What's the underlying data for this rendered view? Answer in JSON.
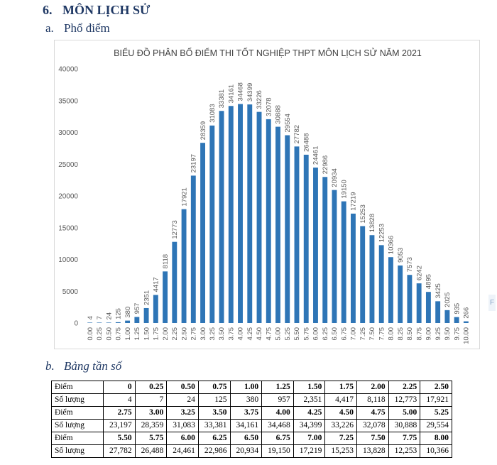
{
  "section": {
    "number": "6.",
    "title": "MÔN LỊCH SỬ"
  },
  "sub_a": {
    "number": "a.",
    "title": "Phổ điểm"
  },
  "sub_b": {
    "number": "b.",
    "title": "Bảng tần số"
  },
  "side_label": "F",
  "colors": {
    "bar": "#2e75b6",
    "heading": "#1f3864"
  },
  "chart_data": {
    "type": "bar",
    "title": "BIỂU ĐỒ PHÂN BỐ ĐIỂM THI TỐT NGHIỆP THPT MÔN LỊCH SỬ NĂM 2021",
    "xlabel": "",
    "ylabel": "",
    "ylim": [
      0,
      40000
    ],
    "yticks": [
      "40000",
      "35000",
      "30000",
      "25000",
      "20000",
      "15000",
      "10000",
      "5000",
      "0"
    ],
    "categories": [
      "0.00",
      "0.25",
      "0.50",
      "0.75",
      "1.00",
      "1.25",
      "1.50",
      "1.75",
      "2.00",
      "2.25",
      "2.50",
      "2.75",
      "3.00",
      "3.25",
      "3.50",
      "3.75",
      "4.00",
      "4.25",
      "4.50",
      "4.75",
      "5.00",
      "5.25",
      "5.50",
      "5.75",
      "6.00",
      "6.25",
      "6.50",
      "6.75",
      "7.00",
      "7.25",
      "7.50",
      "7.75",
      "8.00",
      "8.25",
      "8.50",
      "8.75",
      "9.00",
      "9.25",
      "9.50",
      "9.75",
      "10.00"
    ],
    "values": [
      4,
      7,
      24,
      125,
      380,
      957,
      2351,
      4417,
      8118,
      12773,
      17921,
      23197,
      28359,
      31083,
      33381,
      34161,
      34468,
      34399,
      33226,
      32078,
      30888,
      29554,
      27782,
      26488,
      24461,
      22986,
      20934,
      19150,
      17219,
      15253,
      13828,
      12253,
      10366,
      9053,
      7573,
      6242,
      4895,
      3425,
      2025,
      935,
      266
    ],
    "data_labels": [
      "4",
      "7",
      "24",
      "125",
      "380",
      "957",
      "2351",
      "4417",
      "8118",
      "12773",
      "17921",
      "23197",
      "28359",
      "31083",
      "33381",
      "34161",
      "34468",
      "34399",
      "33226",
      "32078",
      "30888",
      "29554",
      "27782",
      "26488",
      "24461",
      "22986",
      "20934",
      "19150",
      "17219",
      "15253",
      "13828",
      "12253",
      "10366",
      "9053",
      "7573",
      "6242",
      "4895",
      "3425",
      "2025",
      "935",
      "266"
    ]
  },
  "table": {
    "score_label": "Điểm",
    "count_label": "Số lượng",
    "blocks": [
      {
        "scores": [
          "0",
          "0.25",
          "0.50",
          "0.75",
          "1.00",
          "1.25",
          "1.50",
          "1.75",
          "2.00",
          "2.25",
          "2.50"
        ],
        "counts": [
          "4",
          "7",
          "24",
          "125",
          "380",
          "957",
          "2,351",
          "4,417",
          "8,118",
          "12,773",
          "17,921"
        ]
      },
      {
        "scores": [
          "2.75",
          "3.00",
          "3.25",
          "3.50",
          "3.75",
          "4.00",
          "4.25",
          "4.50",
          "4.75",
          "5.00",
          "5.25"
        ],
        "counts": [
          "23,197",
          "28,359",
          "31,083",
          "33,381",
          "34,161",
          "34,468",
          "34,399",
          "33,226",
          "32,078",
          "30,888",
          "29,554"
        ]
      },
      {
        "scores": [
          "5.50",
          "5.75",
          "6.00",
          "6.25",
          "6.50",
          "6.75",
          "7.00",
          "7.25",
          "7.50",
          "7.75",
          "8.00"
        ],
        "counts": [
          "27,782",
          "26,488",
          "24,461",
          "22,986",
          "20,934",
          "19,150",
          "17,219",
          "15,253",
          "13,828",
          "12,253",
          "10,366"
        ]
      }
    ]
  }
}
